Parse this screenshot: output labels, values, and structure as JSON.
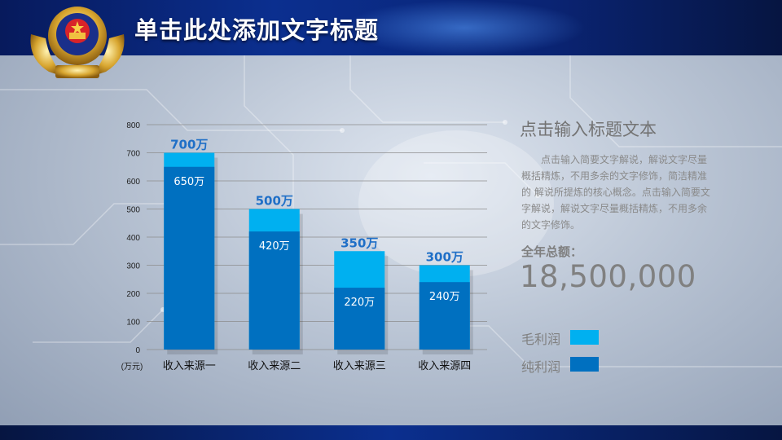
{
  "header": {
    "title": "单击此处添加文字标题"
  },
  "emblem": {
    "icon": "police-emblem-icon"
  },
  "colors": {
    "gross": "#00b0f0",
    "net": "#0070c0",
    "title_bg": "#0b2f8f",
    "label_blue": "#1f6fc7"
  },
  "sidebar": {
    "heading": "点击输入标题文本",
    "description": "点击输入简要文字解说，解说文字尽量概括精炼，不用多余的文字修饰，简洁精准的 解说所提炼的核心概念。点击输入简要文字解说，解说文字尽量概括精炼，不用多余的文字修饰。",
    "total_label": "全年总额：",
    "total_value": "18,500,000",
    "legend": [
      {
        "label": "毛利润",
        "color": "#00b0f0"
      },
      {
        "label": "纯利润",
        "color": "#0070c0"
      }
    ]
  },
  "chart_data": {
    "type": "bar",
    "categories": [
      "收入来源一",
      "收入来源二",
      "收入来源三",
      "收入来源四"
    ],
    "series": [
      {
        "name": "毛利润",
        "values": [
          700,
          500,
          350,
          300
        ],
        "labels": [
          "700万",
          "500万",
          "350万",
          "300万"
        ]
      },
      {
        "name": "纯利润",
        "values": [
          650,
          420,
          220,
          240
        ],
        "labels": [
          "650万",
          "420万",
          "220万",
          "240万"
        ]
      }
    ],
    "yticks": [
      "0",
      "100",
      "200",
      "300",
      "400",
      "500",
      "600",
      "700",
      "800"
    ],
    "ylim": [
      0,
      800
    ],
    "unit_label": "(万元)",
    "grid": true,
    "legend_position": "right"
  }
}
